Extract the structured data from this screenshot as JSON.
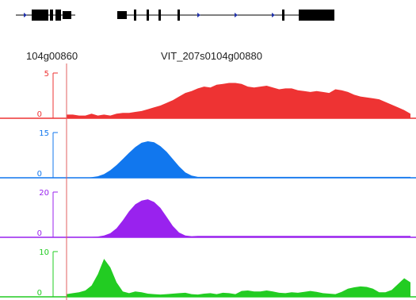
{
  "genes": {
    "labels": [
      "104g00860",
      "VIT_207s0104g00880"
    ]
  },
  "colors": {
    "gene": "#000000",
    "strand_arrow": "#2233aa",
    "left_guide": "#e06060"
  },
  "chart_data": [
    {
      "type": "area",
      "track": 1,
      "color": "#ee3333",
      "ylim": [
        0,
        5
      ],
      "y_ticks": [
        "5",
        "0"
      ],
      "x": [
        0,
        8,
        16,
        24,
        32,
        40,
        48,
        56,
        64,
        72,
        80,
        88,
        96,
        104,
        112,
        120,
        128,
        136,
        144,
        152,
        160,
        168,
        176,
        184,
        192,
        200,
        208,
        216,
        224,
        232,
        240,
        248,
        256,
        264,
        272,
        280,
        288,
        296,
        304,
        312,
        320,
        328,
        336,
        344,
        352,
        360,
        368,
        376,
        384,
        392,
        400,
        408,
        416,
        424,
        432,
        440
      ],
      "values": [
        0.4,
        0.4,
        0.3,
        0.3,
        0.5,
        0.3,
        0.4,
        0.3,
        0.5,
        0.6,
        0.6,
        0.7,
        0.8,
        1.0,
        1.2,
        1.4,
        1.7,
        2.0,
        2.4,
        2.8,
        3.0,
        3.3,
        3.5,
        3.4,
        3.7,
        3.8,
        3.9,
        3.9,
        3.8,
        3.5,
        3.4,
        3.5,
        3.6,
        3.4,
        3.2,
        3.3,
        3.3,
        3.1,
        3.0,
        2.9,
        3.0,
        2.9,
        2.8,
        3.2,
        3.1,
        2.9,
        2.6,
        2.4,
        2.3,
        2.2,
        2.1,
        1.8,
        1.5,
        1.2,
        0.9,
        0.5
      ]
    },
    {
      "type": "area",
      "track": 2,
      "color": "#1177ee",
      "ylim": [
        0,
        15
      ],
      "y_ticks": [
        "15",
        "0"
      ],
      "x": [
        0,
        8,
        16,
        24,
        32,
        40,
        48,
        56,
        64,
        72,
        80,
        88,
        96,
        104,
        112,
        120,
        128,
        136,
        144,
        152,
        160,
        168,
        176,
        184,
        192,
        200,
        208,
        216,
        224,
        232,
        240,
        248,
        256,
        264,
        272,
        280,
        288,
        296,
        304,
        312,
        320,
        328,
        336,
        344,
        352,
        360,
        368,
        376,
        384,
        392,
        400,
        408,
        416,
        424,
        432,
        440
      ],
      "values": [
        0,
        0,
        0,
        0,
        0.2,
        0.5,
        1.2,
        2.5,
        4.2,
        6.2,
        8.3,
        10.2,
        11.6,
        12.1,
        11.8,
        10.5,
        8.6,
        6.2,
        3.8,
        1.8,
        0.7,
        0.3,
        0.3,
        0.3,
        0.3,
        0.3,
        0.3,
        0.3,
        0.3,
        0.3,
        0.3,
        0.3,
        0.3,
        0.3,
        0.3,
        0.3,
        0.3,
        0.3,
        0.3,
        0.3,
        0.3,
        0.3,
        0.3,
        0.3,
        0.3,
        0.3,
        0.3,
        0.3,
        0.3,
        0.3,
        0.3,
        0.3,
        0.3,
        0.3,
        0.3,
        0.3
      ]
    },
    {
      "type": "area",
      "track": 3,
      "color": "#9922ee",
      "ylim": [
        0,
        20
      ],
      "y_ticks": [
        "20",
        "0"
      ],
      "x": [
        0,
        8,
        16,
        24,
        32,
        40,
        48,
        56,
        64,
        72,
        80,
        88,
        96,
        104,
        112,
        120,
        128,
        136,
        144,
        152,
        160,
        168,
        176,
        184,
        192,
        200,
        208,
        216,
        224,
        232,
        240,
        248,
        256,
        264,
        272,
        280,
        288,
        296,
        304,
        312,
        320,
        328,
        336,
        344,
        352,
        360,
        368,
        376,
        384,
        392,
        400,
        408,
        416,
        424,
        432,
        440
      ],
      "values": [
        0.2,
        0.2,
        0.2,
        0.2,
        0.2,
        0.3,
        0.8,
        1.8,
        4.0,
        7.5,
        11.5,
        14.6,
        16.2,
        16.8,
        15.6,
        13.0,
        9.0,
        5.0,
        2.1,
        0.8,
        0.5,
        0.6,
        0.6,
        0.6,
        0.6,
        0.6,
        0.6,
        0.6,
        0.6,
        0.6,
        0.6,
        0.6,
        0.6,
        0.6,
        0.6,
        0.6,
        0.6,
        0.6,
        0.6,
        0.6,
        0.6,
        0.6,
        0.6,
        0.6,
        0.6,
        0.6,
        0.6,
        0.6,
        0.6,
        0.6,
        0.6,
        0.6,
        0.6,
        0.6,
        0.6,
        0.6
      ]
    },
    {
      "type": "area",
      "track": 4,
      "color": "#22cc22",
      "ylim": [
        0,
        10
      ],
      "y_ticks": [
        "10",
        "0"
      ],
      "x": [
        0,
        8,
        16,
        24,
        32,
        40,
        48,
        56,
        64,
        72,
        80,
        88,
        96,
        104,
        112,
        120,
        128,
        136,
        144,
        152,
        160,
        168,
        176,
        184,
        192,
        200,
        208,
        216,
        224,
        232,
        240,
        248,
        256,
        264,
        272,
        280,
        288,
        296,
        304,
        312,
        320,
        328,
        336,
        344,
        352,
        360,
        368,
        376,
        384,
        392,
        400,
        408,
        416,
        424,
        432,
        440
      ],
      "values": [
        0.6,
        0.8,
        1.0,
        1.4,
        2.5,
        5.0,
        8.4,
        6.5,
        3.2,
        1.2,
        0.8,
        1.2,
        1.0,
        0.7,
        0.6,
        0.5,
        0.6,
        0.7,
        0.8,
        0.9,
        0.6,
        0.5,
        0.7,
        0.8,
        0.6,
        0.9,
        0.8,
        0.6,
        1.3,
        1.4,
        1.2,
        1.2,
        1.4,
        1.2,
        0.9,
        0.8,
        1.0,
        0.9,
        1.1,
        1.3,
        1.1,
        0.8,
        0.7,
        0.6,
        1.1,
        1.8,
        2.1,
        2.3,
        2.2,
        1.8,
        1.0,
        1.0,
        1.5,
        2.8,
        4.1,
        3.2
      ]
    }
  ]
}
